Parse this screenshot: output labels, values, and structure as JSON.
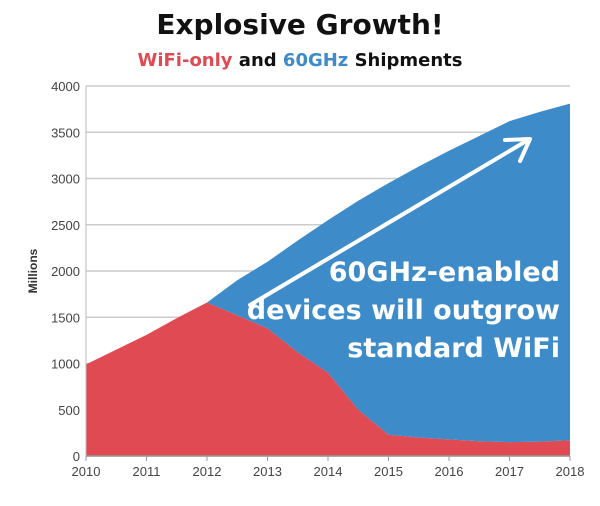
{
  "title": "Explosive Growth!",
  "subtitle": {
    "part1": "WiFi-only",
    "part2": " and ",
    "part3": "60GHz",
    "part4": " Shipments"
  },
  "chart_data": {
    "type": "area",
    "stacked": true,
    "ylabel": "Millions",
    "xlabel": "",
    "xlim": [
      2010,
      2018
    ],
    "ylim": [
      0,
      4000
    ],
    "grid": true,
    "x_ticks": [
      "2010",
      "2011",
      "2012",
      "2013",
      "2014",
      "2015",
      "2016",
      "2017",
      "2018"
    ],
    "y_ticks": [
      "0",
      "500",
      "1000",
      "1500",
      "2000",
      "2500",
      "3000",
      "3500",
      "4000"
    ],
    "x": [
      2010,
      2010.5,
      2011,
      2011.5,
      2012,
      2012.5,
      2013,
      2013.5,
      2014,
      2014.5,
      2015,
      2015.5,
      2016,
      2016.5,
      2017,
      2017.5,
      2018
    ],
    "series": [
      {
        "name": "WiFi-only",
        "color": "#e04a52",
        "values": [
          990,
          1150,
          1310,
          1490,
          1660,
          1520,
          1380,
          1120,
          900,
          500,
          230,
          200,
          180,
          160,
          150,
          155,
          170
        ]
      },
      {
        "name": "60GHz",
        "color": "#3d8bc9",
        "values": [
          0,
          0,
          0,
          0,
          0,
          380,
          720,
          1210,
          1650,
          2260,
          2720,
          2930,
          3120,
          3300,
          3470,
          3565,
          3640
        ]
      }
    ],
    "annotation": {
      "lines": [
        "60GHz-enabled",
        "devices will outgrow",
        "standard WiFi"
      ],
      "arrow": "up-right"
    }
  }
}
